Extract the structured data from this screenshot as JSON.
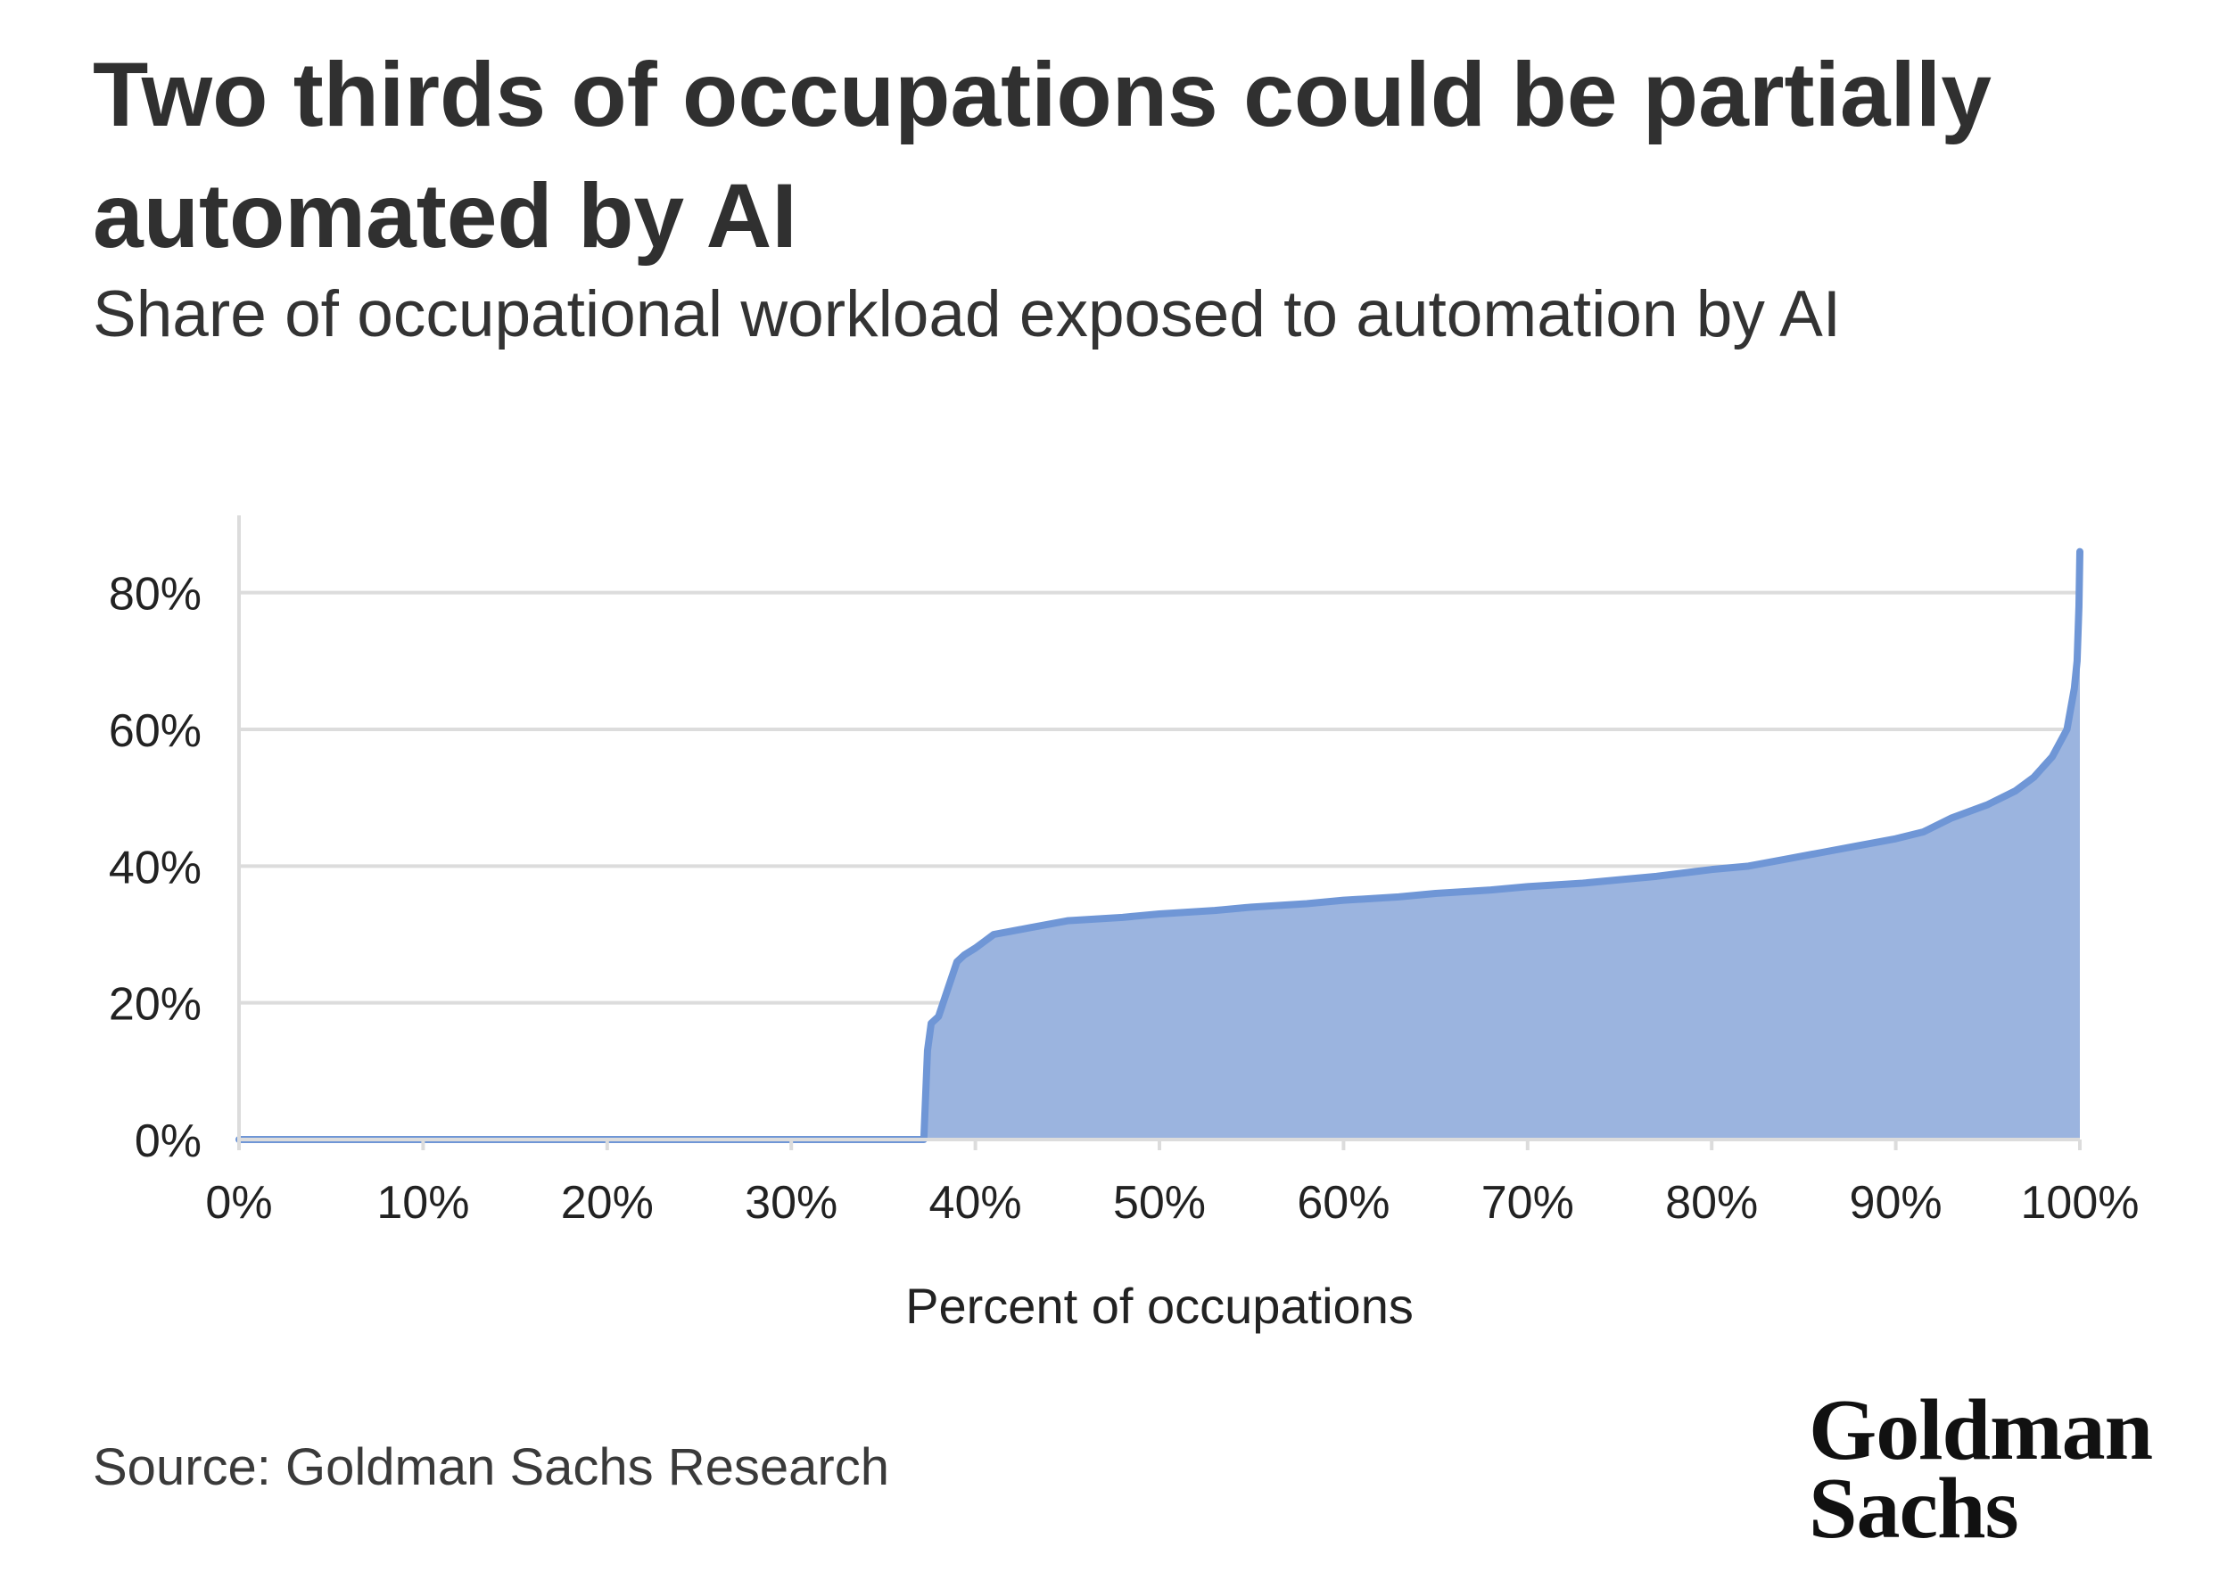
{
  "title": "Two thirds of occupations could be partially automated by AI",
  "subtitle": "Share of occupational workload exposed to automation by AI",
  "source": "Source: Goldman Sachs Research",
  "logo": {
    "line1": "Goldman",
    "line2": "Sachs"
  },
  "colors": {
    "area": "#9bb4df",
    "line": "#6f96d6",
    "grid": "#dcdcdc",
    "axis_text": "#222222"
  },
  "chart_data": {
    "type": "area",
    "xlabel": "Percent of occupations",
    "ylabel": "",
    "xlim": [
      0,
      100
    ],
    "ylim": [
      0,
      90
    ],
    "x_ticks": [
      "0%",
      "10%",
      "20%",
      "30%",
      "40%",
      "50%",
      "60%",
      "70%",
      "80%",
      "90%",
      "100%"
    ],
    "y_ticks": [
      "0%",
      "20%",
      "40%",
      "60%",
      "80%"
    ],
    "grid": true,
    "series": [
      {
        "x": [
          0,
          37.2,
          37.4,
          37.6,
          38.0,
          38.5,
          39.0,
          39.4,
          40.0,
          40.5,
          41.0,
          42.0,
          43.0,
          45.0,
          48.0,
          50.0,
          53.0,
          55.0,
          58.0,
          60.0,
          63.0,
          65.0,
          68.0,
          70.0,
          73.0,
          75.0,
          77.0,
          80.0,
          82.0,
          84.0,
          86.0,
          88.0,
          90.0,
          91.5,
          93.0,
          95.0,
          96.5,
          97.5,
          98.5,
          99.3,
          99.7,
          99.85,
          99.95,
          100.0
        ],
        "y": [
          0,
          0,
          13,
          17,
          18,
          22,
          26,
          27,
          28,
          29,
          30,
          30.5,
          31,
          32,
          32.5,
          33,
          33.5,
          34,
          34.5,
          35,
          35.5,
          36,
          36.5,
          37,
          37.5,
          38,
          38.5,
          39.5,
          40,
          41,
          42,
          43,
          44,
          45,
          47,
          49,
          51,
          53,
          56,
          60,
          66,
          70,
          78,
          86
        ]
      }
    ]
  }
}
